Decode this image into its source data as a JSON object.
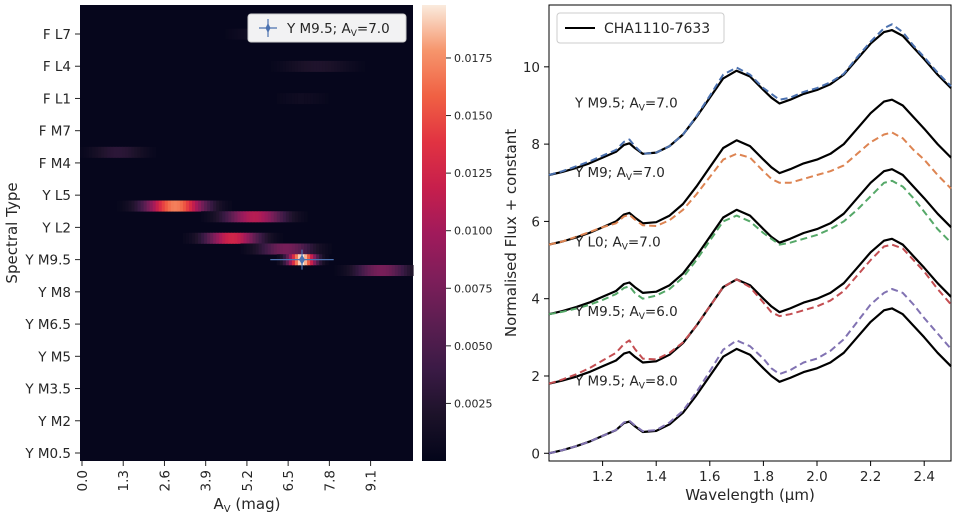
{
  "chart_data": [
    {
      "type": "heatmap",
      "xlabel": "A",
      "xlabel_sub": "V",
      "xlabel_unit": " (mag)",
      "ylabel": "Spectral Type",
      "x_tick_labels": [
        "0.0",
        "1.3",
        "2.6",
        "3.9",
        "5.2",
        "6.5",
        "7.8",
        "9.1"
      ],
      "x_range": [
        0.0,
        10.5
      ],
      "y_tick_labels": [
        "F L7",
        "F L4",
        "F L1",
        "F M7",
        "F M4",
        "Y L5",
        "Y L2",
        "Y M9.5",
        "Y M8",
        "Y M6.5",
        "Y M5",
        "Y M3.5",
        "Y M2",
        "Y M0.5"
      ],
      "colorbar_ticks": [
        "0.0025",
        "0.0050",
        "0.0075",
        "0.0100",
        "0.0125",
        "0.0150",
        "0.0175"
      ],
      "colorbar_range": [
        0.0,
        0.0198
      ],
      "hotspots": [
        {
          "row": "Y L4",
          "a_v": 3.0,
          "spread": 1.1,
          "value": 0.017
        },
        {
          "row": "Y L3",
          "a_v": 5.5,
          "spread": 1.1,
          "value": 0.011
        },
        {
          "row": "Y L1",
          "a_v": 4.8,
          "spread": 1.0,
          "value": 0.0125
        },
        {
          "row": "Y L0",
          "a_v": 6.5,
          "spread": 1.0,
          "value": 0.0075
        },
        {
          "row": "Y M9.5",
          "a_v": 7.0,
          "spread": 0.5,
          "value": 0.0198
        },
        {
          "row": "Y M9",
          "a_v": 9.5,
          "spread": 1.0,
          "value": 0.0075
        },
        {
          "row": "F M4.5",
          "a_v": 1.2,
          "spread": 1.0,
          "value": 0.003
        },
        {
          "row": "F L4",
          "a_v": 7.5,
          "spread": 1.3,
          "value": 0.0022
        },
        {
          "row": "F L7",
          "a_v": 5.5,
          "spread": 1.0,
          "value": 0.0012
        },
        {
          "row": "F L1",
          "a_v": 7.0,
          "spread": 1.0,
          "value": 0.001
        }
      ],
      "best_fit": {
        "label_prefix": "Y M9.5; A",
        "label_sub": "V",
        "label_suffix": "=7.0",
        "a_v": 7.0,
        "a_v_err": 1.0,
        "row": "Y M9.5"
      }
    },
    {
      "type": "line",
      "xlabel": "Wavelength (μm)",
      "ylabel": "Normalised Flux + constant",
      "x_range": [
        1.0,
        2.5
      ],
      "y_range": [
        -0.2,
        11.6
      ],
      "x_ticks": [
        1.2,
        1.4,
        1.6,
        1.8,
        2.0,
        2.2,
        2.4
      ],
      "x_tick_labels": [
        "1.2",
        "1.4",
        "1.6",
        "1.8",
        "2.0",
        "2.2",
        "2.4"
      ],
      "y_ticks": [
        0,
        2,
        4,
        6,
        8,
        10
      ],
      "y_tick_labels": [
        "0",
        "2",
        "4",
        "6",
        "8",
        "10"
      ],
      "legend": "CHA1110-7633",
      "observed_template": {
        "x": [
          1.0,
          1.05,
          1.1,
          1.15,
          1.2,
          1.25,
          1.28,
          1.3,
          1.32,
          1.35,
          1.4,
          1.45,
          1.5,
          1.55,
          1.6,
          1.65,
          1.7,
          1.75,
          1.8,
          1.83,
          1.86,
          1.9,
          1.95,
          2.0,
          2.05,
          2.1,
          2.15,
          2.2,
          2.25,
          2.28,
          2.32,
          2.36,
          2.4,
          2.45,
          2.5
        ],
        "y": [
          0.0,
          0.08,
          0.18,
          0.3,
          0.45,
          0.6,
          0.78,
          0.82,
          0.7,
          0.55,
          0.58,
          0.75,
          1.05,
          1.5,
          2.0,
          2.5,
          2.7,
          2.55,
          2.2,
          2.0,
          1.85,
          1.95,
          2.1,
          2.2,
          2.35,
          2.6,
          3.0,
          3.4,
          3.7,
          3.75,
          3.6,
          3.3,
          3.0,
          2.6,
          2.25
        ]
      },
      "series": [
        {
          "name": "CHA1110-7633 (+7.2)",
          "offset": 7.2,
          "scale": 1.0,
          "model_label": "Y M9.5; A",
          "model_sub": "V",
          "model_suffix": "=7.0",
          "model_color": "#4c72b0",
          "model_delta": [
            0.0,
            0.02,
            0.04,
            0.05,
            0.05,
            0.05,
            0.08,
            0.1,
            0.05,
            0.0,
            0.0,
            0.0,
            0.0,
            0.02,
            0.05,
            0.1,
            0.08,
            0.05,
            0.05,
            0.1,
            0.1,
            0.05,
            0.05,
            0.05,
            0.05,
            0.02,
            0.05,
            0.05,
            0.1,
            0.15,
            0.1,
            0.05,
            0.05,
            0.05,
            0.05
          ]
        },
        {
          "name": "CHA1110-7633 (+5.4)",
          "offset": 5.4,
          "scale": 1.0,
          "model_label": "Y M9",
          "model_sub": "V",
          "model_suffix": "=7.0",
          "model_color": "#dd8452",
          "model_delta": [
            0.0,
            0.0,
            0.02,
            0.02,
            0.0,
            -0.05,
            -0.05,
            -0.05,
            -0.05,
            -0.05,
            -0.1,
            -0.12,
            -0.15,
            -0.2,
            -0.25,
            -0.3,
            -0.35,
            -0.3,
            -0.3,
            -0.3,
            -0.25,
            -0.35,
            -0.4,
            -0.4,
            -0.45,
            -0.55,
            -0.65,
            -0.75,
            -0.85,
            -0.85,
            -0.85,
            -0.85,
            -0.8,
            -0.8,
            -0.8
          ]
        },
        {
          "name": "CHA1110-7633 (+3.6)",
          "offset": 3.6,
          "scale": 1.0,
          "model_label": "Y L0",
          "model_sub": "V",
          "model_suffix": "=7.0",
          "model_color": "#55a868",
          "model_delta": [
            0.0,
            -0.02,
            -0.04,
            -0.06,
            -0.08,
            -0.08,
            -0.1,
            -0.1,
            -0.15,
            -0.15,
            -0.1,
            -0.1,
            -0.1,
            -0.1,
            -0.1,
            -0.1,
            -0.15,
            -0.15,
            -0.1,
            -0.05,
            -0.05,
            -0.1,
            -0.15,
            -0.15,
            -0.15,
            -0.2,
            -0.3,
            -0.35,
            -0.3,
            -0.3,
            -0.3,
            -0.3,
            -0.35,
            -0.4,
            -0.4
          ]
        },
        {
          "name": "CHA1110-7633 (+1.8)",
          "offset": 1.8,
          "scale": 1.0,
          "model_label": "Y M9.5; A",
          "model_sub": "V",
          "model_suffix": "=6.0",
          "model_color": "#c44e52",
          "model_delta": [
            0.0,
            0.03,
            0.06,
            0.1,
            0.15,
            0.2,
            0.25,
            0.3,
            0.2,
            0.1,
            0.05,
            0.05,
            0.02,
            0.0,
            0.0,
            0.0,
            0.0,
            -0.05,
            -0.1,
            -0.15,
            -0.1,
            -0.15,
            -0.2,
            -0.2,
            -0.2,
            -0.2,
            -0.2,
            -0.2,
            -0.15,
            -0.15,
            -0.1,
            -0.1,
            -0.1,
            -0.15,
            -0.2
          ]
        },
        {
          "name": "CHA1110-7633 (+0.0)",
          "offset": 0.0,
          "scale": 1.0,
          "model_label": "Y M9.5; A",
          "model_sub": "V",
          "model_suffix": "=8.0",
          "model_color": "#8172b2",
          "model_delta": [
            0.0,
            0.0,
            0.0,
            0.0,
            0.0,
            0.0,
            0.02,
            0.02,
            0.02,
            0.02,
            0.02,
            0.05,
            0.05,
            0.08,
            0.12,
            0.18,
            0.22,
            0.22,
            0.25,
            0.2,
            0.2,
            0.2,
            0.25,
            0.25,
            0.3,
            0.35,
            0.4,
            0.45,
            0.45,
            0.5,
            0.55,
            0.55,
            0.5,
            0.5,
            0.45
          ]
        }
      ]
    }
  ]
}
